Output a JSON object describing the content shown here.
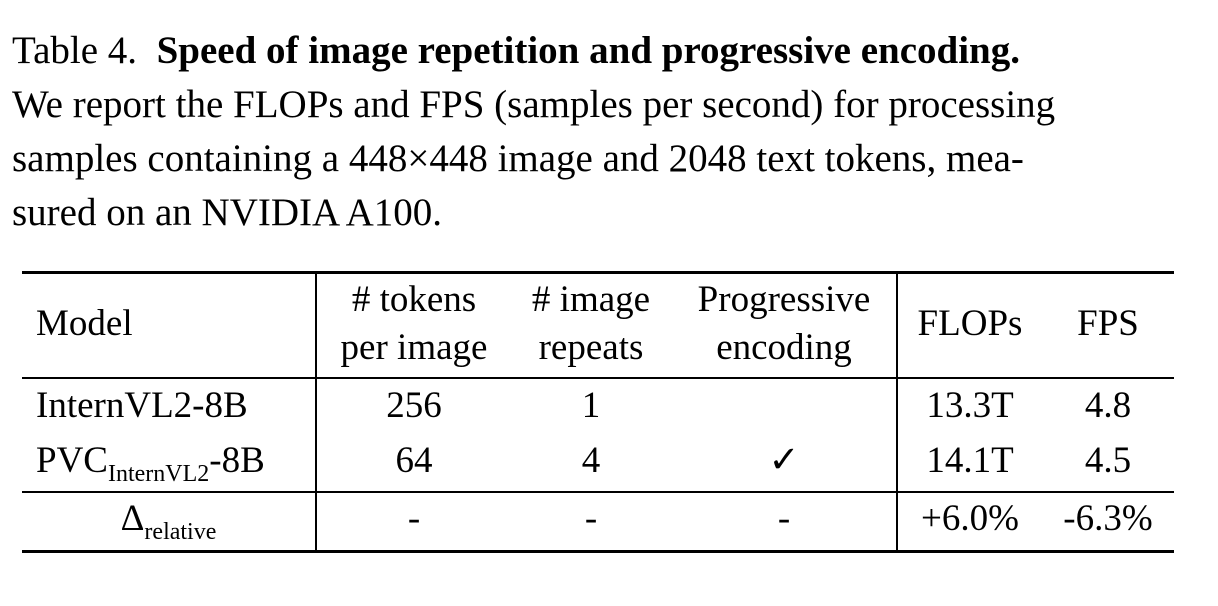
{
  "caption": {
    "label": "Table 4.",
    "title": "Speed of image repetition and progressive encoding.",
    "line1_rest": "",
    "line2": "We report the FLOPs and FPS (samples per second) for processing",
    "line3": "samples containing a 448×448 image and 2048 text tokens, mea-",
    "line4": "sured on an NVIDIA A100."
  },
  "table": {
    "headers": {
      "model": "Model",
      "tokens_line1": "# tokens",
      "tokens_line2": "per image",
      "repeats_line1": "# image",
      "repeats_line2": "repeats",
      "prog_line1": "Progressive",
      "prog_line2": "encoding",
      "flops": "FLOPs",
      "fps": "FPS"
    },
    "rows": [
      {
        "model": "InternVL2-8B",
        "model_sub": "",
        "model_suffix": "",
        "tokens": "256",
        "repeats": "1",
        "progressive": "",
        "flops": "13.3T",
        "fps": "4.8"
      },
      {
        "model": "PVC",
        "model_sub": "InternVL2",
        "model_suffix": "-8B",
        "tokens": "64",
        "repeats": "4",
        "progressive": "✓",
        "flops": "14.1T",
        "fps": "4.5"
      },
      {
        "model": "Δ",
        "model_sub": "relative",
        "model_suffix": "",
        "tokens": "-",
        "repeats": "-",
        "progressive": "-",
        "flops": "+6.0%",
        "fps": "-6.3%"
      }
    ]
  }
}
